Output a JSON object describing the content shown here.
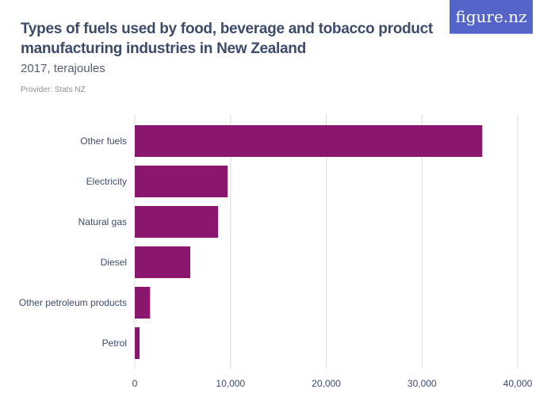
{
  "title": "Types of fuels used by food, beverage and tobacco product manufacturing industries in New Zealand",
  "subtitle": "2017, terajoules",
  "provider": "Provider: Stats NZ",
  "logo": "figure.nz",
  "chart_data": {
    "type": "bar",
    "orientation": "horizontal",
    "categories": [
      "Other fuels",
      "Electricity",
      "Natural gas",
      "Diesel",
      "Other petroleum products",
      "Petrol"
    ],
    "values": [
      36300,
      9700,
      8700,
      5800,
      1600,
      500
    ],
    "xlim": [
      0,
      40000
    ],
    "xticks": [
      0,
      10000,
      20000,
      30000,
      40000
    ],
    "xtick_labels": [
      "0",
      "10,000",
      "20,000",
      "30,000",
      "40,000"
    ],
    "grid": true,
    "bar_color": "#8a166e"
  }
}
